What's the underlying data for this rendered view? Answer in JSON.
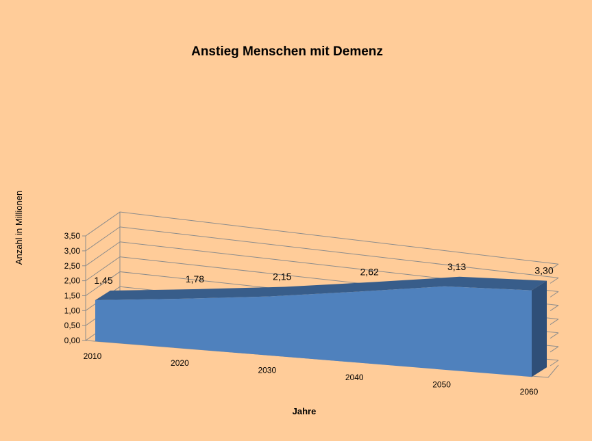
{
  "chart_data": {
    "type": "area",
    "title": "Anstieg  Menschen mit Demenz",
    "xlabel": "Jahre",
    "ylabel": "Anzahl in Millionen",
    "categories": [
      "2010",
      "2020",
      "2030",
      "2040",
      "2050",
      "2060"
    ],
    "values": [
      1.45,
      1.78,
      2.15,
      2.62,
      3.13,
      3.3
    ],
    "data_labels": [
      "1,45",
      "1,78",
      "2,15",
      "2,62",
      "3,13",
      "3,30"
    ],
    "y_ticks": [
      "0,00",
      "0,50",
      "1,00",
      "1,50",
      "2,00",
      "2,50",
      "3,00",
      "3,50"
    ],
    "ylim": [
      0,
      3.5
    ],
    "grid": true,
    "legend": "none",
    "colors": {
      "background": "#FFCC99",
      "area_front": "#4F81BD",
      "area_top": "#385D8A",
      "area_side": "#2F4F78",
      "gridline": "#8C8C8C"
    }
  }
}
